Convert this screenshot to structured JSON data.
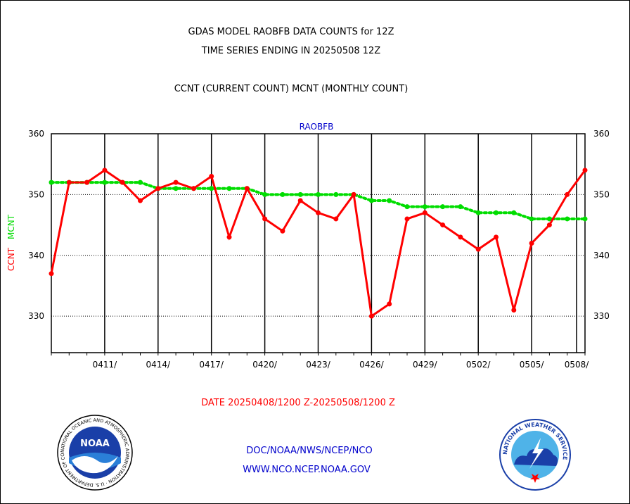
{
  "header": {
    "line1": "GDAS MODEL RAOBFB DATA COUNTS for 12Z",
    "line2": "TIME SERIES ENDING IN 20250508 12Z",
    "line3": "CCNT (CURRENT COUNT) MCNT (MONTHLY COUNT)"
  },
  "footer": {
    "date_range": "DATE 20250408/1200 Z-20250508/1200 Z",
    "org_path": "DOC/NOAA/NWS/NCEP/NCO",
    "website": "WWW.NCO.NCEP.NOAA.GOV"
  },
  "logos": {
    "noaa_text": "NOAA",
    "noaa_ring": "NATIONAL OCEANIC AND ATMOSPHERIC ADMINISTRATION · U.S. DEPARTMENT OF COMMERCE",
    "nws_ring": "NATIONAL WEATHER SERVICE"
  },
  "colors": {
    "ccnt": "#ff0000",
    "mcnt": "#00dd00",
    "series_label": "#0000cc",
    "footer_blue": "#0000cc",
    "footer_red": "#ff0000"
  },
  "chart_data": {
    "type": "line",
    "title": "RAOBFB",
    "ylabel_ccnt": "CCNT",
    "ylabel_mcnt": "MCNT",
    "ylim": [
      324,
      360
    ],
    "yticks": [
      330,
      340,
      350,
      360
    ],
    "grid_lines_y": [
      330,
      340,
      350
    ],
    "xlim": [
      0,
      30
    ],
    "xtick_labels": [
      {
        "x": 3,
        "label": "0411/"
      },
      {
        "x": 6,
        "label": "0414/"
      },
      {
        "x": 9,
        "label": "0417/"
      },
      {
        "x": 12,
        "label": "0420/"
      },
      {
        "x": 15,
        "label": "0423/"
      },
      {
        "x": 18,
        "label": "0426/"
      },
      {
        "x": 21,
        "label": "0429/"
      },
      {
        "x": 24,
        "label": "0502/"
      },
      {
        "x": 27,
        "label": "0505/"
      },
      {
        "x": 30,
        "label": "0508/"
      }
    ],
    "series": [
      {
        "name": "CCNT",
        "style": "solid",
        "values": [
          337,
          352,
          352,
          354,
          352,
          349,
          351,
          352,
          351,
          353,
          343,
          351,
          346,
          344,
          349,
          347,
          346,
          350,
          330,
          332,
          346,
          347,
          345,
          343,
          341,
          343,
          331,
          342,
          345,
          350,
          354
        ]
      },
      {
        "name": "MCNT",
        "style": "dotted",
        "values": [
          352,
          352,
          352,
          352,
          352,
          352,
          351,
          351,
          351,
          351,
          351,
          351,
          350,
          350,
          350,
          350,
          350,
          350,
          349,
          349,
          348,
          348,
          348,
          348,
          347,
          347,
          347,
          346,
          346,
          346,
          346
        ]
      }
    ]
  }
}
